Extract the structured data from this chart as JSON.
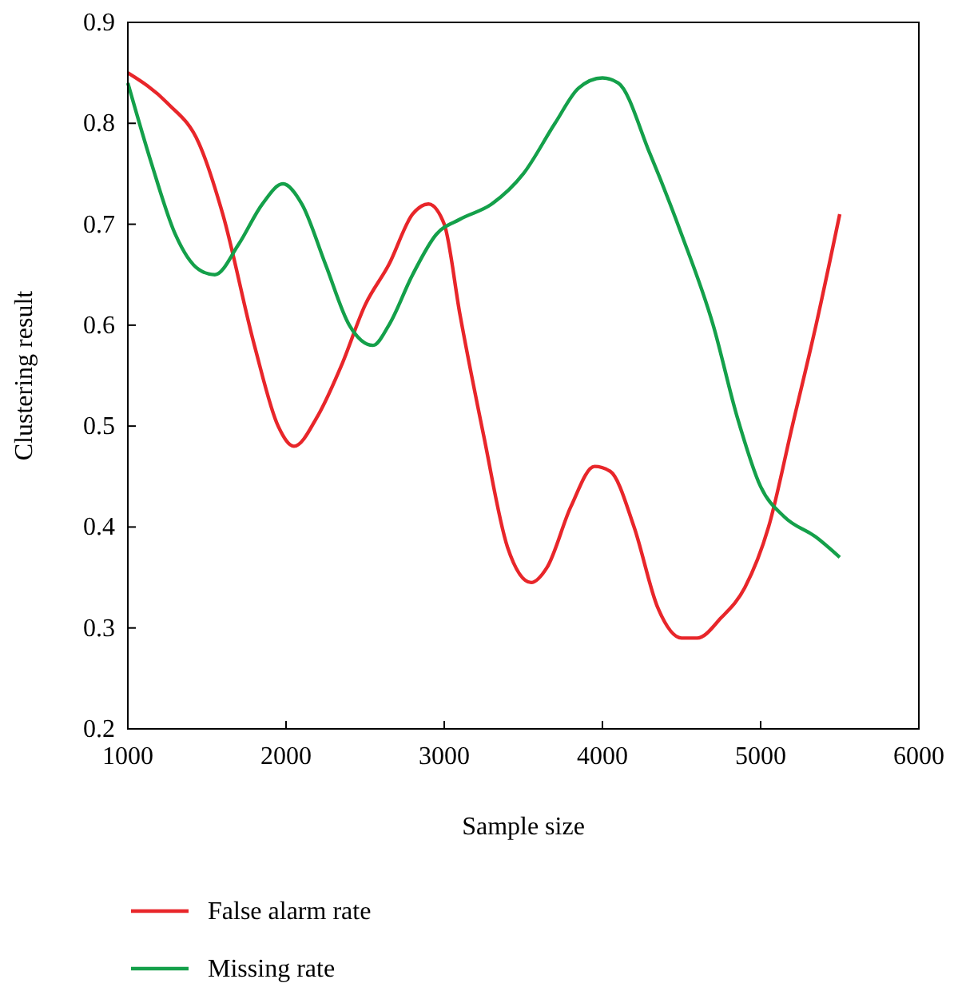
{
  "chart_data": {
    "type": "line",
    "xlabel": "Sample size",
    "ylabel": "Clustering result",
    "xlim": [
      1000,
      6000
    ],
    "xticks": [
      1000,
      2000,
      3000,
      4000,
      5000,
      6000
    ],
    "ylim": [
      0.2,
      0.9
    ],
    "yticks": [
      0.2,
      0.3,
      0.4,
      0.5,
      0.6,
      0.7,
      0.8,
      0.9
    ],
    "legend": "bottom",
    "grid": false,
    "series": [
      {
        "name": "False alarm rate",
        "color": "#e8262a",
        "x": [
          1000,
          1250,
          1450,
          1600,
          1800,
          1950,
          2050,
          2200,
          2350,
          2500,
          2650,
          2800,
          2900,
          3000,
          3100,
          3250,
          3400,
          3550,
          3650,
          3800,
          3950,
          4050,
          4200,
          4350,
          4500,
          4600,
          4750,
          4900,
          5050,
          5200,
          5350,
          5500
        ],
        "values": [
          0.85,
          0.82,
          0.78,
          0.71,
          0.58,
          0.5,
          0.48,
          0.51,
          0.56,
          0.62,
          0.66,
          0.71,
          0.72,
          0.7,
          0.61,
          0.49,
          0.38,
          0.345,
          0.36,
          0.42,
          0.46,
          0.455,
          0.4,
          0.32,
          0.29,
          0.29,
          0.31,
          0.34,
          0.4,
          0.5,
          0.6,
          0.71
        ]
      },
      {
        "name": "Missing rate",
        "color": "#14a04a",
        "x": [
          1000,
          1150,
          1300,
          1450,
          1550,
          1700,
          1850,
          1980,
          2100,
          2250,
          2400,
          2550,
          2650,
          2800,
          2950,
          3100,
          3300,
          3500,
          3700,
          3850,
          4000,
          4100,
          4300,
          4500,
          4700,
          4850,
          5000,
          5150,
          5350,
          5500
        ],
        "values": [
          0.84,
          0.76,
          0.69,
          0.655,
          0.65,
          0.68,
          0.72,
          0.74,
          0.72,
          0.66,
          0.6,
          0.58,
          0.6,
          0.65,
          0.69,
          0.705,
          0.72,
          0.75,
          0.8,
          0.835,
          0.845,
          0.84,
          0.77,
          0.69,
          0.6,
          0.51,
          0.44,
          0.41,
          0.39,
          0.37
        ]
      }
    ]
  }
}
